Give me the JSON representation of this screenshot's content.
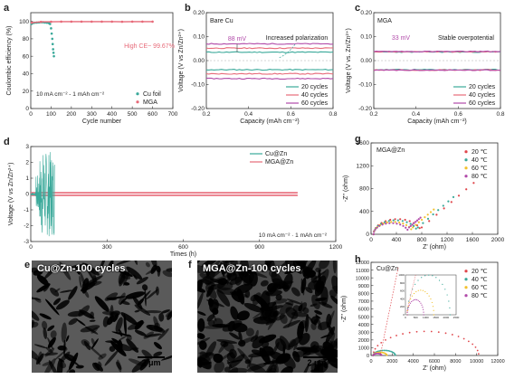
{
  "panel_letters": {
    "a": "a",
    "b": "b",
    "c": "c",
    "d": "d",
    "e": "e",
    "f": "f",
    "g": "g",
    "h": "h"
  },
  "micrographs": {
    "e": {
      "label": "Cu@Zn-100 cycles",
      "scale": "2 μm"
    },
    "f": {
      "label": "MGA@Zn-100 cycles",
      "scale": "2 μm"
    }
  },
  "chart_data": [
    {
      "id": "a",
      "type": "scatter",
      "xlabel": "Cycle number",
      "ylabel": "Coulombic efficiency (%)",
      "xlim": [
        0,
        700
      ],
      "ylim": [
        0,
        110
      ],
      "xticks": [
        0,
        100,
        200,
        300,
        400,
        500,
        600,
        700
      ],
      "yticks": [
        0,
        20,
        40,
        60,
        80,
        100
      ],
      "annotations": [
        "High CE~ 99.67%",
        "10 mA cm⁻² - 1 mAh cm⁻²"
      ],
      "legend": "bottom-right",
      "series": [
        {
          "name": "Cu foil",
          "color": "#3aa99a",
          "x": [
            3,
            10,
            20,
            30,
            40,
            50,
            60,
            70,
            80,
            90,
            95,
            100,
            103,
            106,
            108,
            110,
            112,
            114
          ],
          "y": [
            97,
            98,
            98.5,
            98.6,
            98.8,
            99,
            99,
            98.7,
            98.5,
            98,
            97,
            92,
            86,
            80,
            74,
            68,
            64,
            60
          ]
        },
        {
          "name": "MGA",
          "color": "#e76a79",
          "x": [
            5,
            50,
            100,
            150,
            200,
            250,
            300,
            350,
            400,
            450,
            500,
            550,
            600
          ],
          "y": [
            98.5,
            99.5,
            99.6,
            99.7,
            99.7,
            99.7,
            99.7,
            99.7,
            99.7,
            99.6,
            99.7,
            99.7,
            99.7
          ]
        }
      ]
    },
    {
      "id": "b",
      "type": "line",
      "xlabel": "Capacity (mAh cm⁻²)",
      "ylabel": "Voltage (V vs Zn/Zn²⁺)",
      "xlim": [
        0.2,
        0.8
      ],
      "ylim": [
        -0.2,
        0.2
      ],
      "xticks": [
        0.2,
        0.4,
        0.6,
        0.8
      ],
      "yticks": [
        -0.2,
        -0.1,
        0.0,
        0.1,
        0.2
      ],
      "yticklabels": [
        "-0.20",
        "-0.10",
        "0.00",
        "0.10",
        "0.20"
      ],
      "annotations": [
        "Bare Cu",
        "88 mV",
        "Increased polarization"
      ],
      "legend": "bottom-right",
      "series": [
        {
          "name": "20 cycles",
          "color": "#3aa99a",
          "upper": 0.035,
          "lower": -0.038
        },
        {
          "name": "40 cycles",
          "color": "#e76a79",
          "upper": 0.052,
          "lower": -0.055
        },
        {
          "name": "60 cycles",
          "color": "#b14aa9",
          "upper": 0.07,
          "lower": -0.075
        }
      ]
    },
    {
      "id": "c",
      "type": "line",
      "xlabel": "Capacity (mAh cm⁻²)",
      "ylabel": "Voltage (V vs. Zn/Zn²⁺)",
      "xlim": [
        0.2,
        0.8
      ],
      "ylim": [
        -0.2,
        0.2
      ],
      "xticks": [
        0.2,
        0.4,
        0.6,
        0.8
      ],
      "yticks": [
        -0.2,
        -0.1,
        0.0,
        0.1,
        0.2
      ],
      "yticklabels": [
        "-0.20",
        "-0.10",
        "0.00",
        "0.10",
        "0.20"
      ],
      "annotations": [
        "MGA",
        "33 mV",
        "Stable overpotential"
      ],
      "legend": "bottom-right",
      "series": [
        {
          "name": "20 cycles",
          "color": "#3aa99a",
          "upper": 0.036,
          "lower": -0.038
        },
        {
          "name": "40 cycles",
          "color": "#e76a79",
          "upper": 0.037,
          "lower": -0.039
        },
        {
          "name": "60 cycles",
          "color": "#b14aa9",
          "upper": 0.038,
          "lower": -0.04
        }
      ]
    },
    {
      "id": "d",
      "type": "line",
      "xlabel": "Times (h)",
      "ylabel": "Voltage (V vs Zn/Zn²⁺)",
      "xlim": [
        0,
        1200
      ],
      "ylim": [
        -3,
        3
      ],
      "xticks": [
        0,
        300,
        600,
        900,
        1200
      ],
      "yticks": [
        -3,
        -2,
        -1,
        0,
        1,
        2,
        3
      ],
      "annotations": [
        "10 mA cm⁻² · 1 mAh cm⁻²"
      ],
      "legend": "top-right",
      "series": [
        {
          "name": "Cu@Zn",
          "color": "#3aa99a",
          "tmax": 95
        },
        {
          "name": "MGA@Zn",
          "color": "#e76a79",
          "tmax": 1050
        }
      ]
    },
    {
      "id": "g",
      "type": "scatter",
      "xlabel": "Z' (ohm)",
      "ylabel": "-Z'' (ohm)",
      "xlim": [
        0,
        2000
      ],
      "ylim": [
        0,
        1600
      ],
      "xticks": [
        0,
        400,
        800,
        1200,
        1600,
        2000
      ],
      "yticks": [
        0,
        400,
        800,
        1200,
        1600
      ],
      "annotations": [
        "MGA@Zn"
      ],
      "legend": "top-right",
      "series": [
        {
          "name": "20 ℃",
          "color": "#e0464b",
          "x0": 40,
          "d": 760,
          "tailLen": 820
        },
        {
          "name": "40 ℃",
          "color": "#3aa99a",
          "x0": 40,
          "d": 700,
          "tailLen": 560
        },
        {
          "name": "60 ℃",
          "color": "#f2c12e",
          "x0": 40,
          "d": 620,
          "tailLen": 330
        },
        {
          "name": "80 ℃",
          "color": "#b14aa9",
          "x0": 40,
          "d": 560,
          "tailLen": 180
        }
      ]
    },
    {
      "id": "h",
      "type": "scatter",
      "xlabel": "Z' (ohm)",
      "ylabel": "-Z'' (ohm)",
      "xlim": [
        0,
        12000
      ],
      "ylim": [
        0,
        12000
      ],
      "xticks": [
        0,
        2000,
        4000,
        6000,
        8000,
        10000,
        12000
      ],
      "yticks": [
        0,
        1000,
        2000,
        3000,
        4000,
        5000,
        6000,
        7000,
        8000,
        9000,
        10000,
        11000,
        12000
      ],
      "annotations": [
        "Cu@Zn"
      ],
      "legend": "top-right",
      "series": [
        {
          "name": "20 ℃",
          "color": "#e0464b",
          "x0": 200,
          "d": 10000
        },
        {
          "name": "40 ℃",
          "color": "#3aa99a",
          "x0": 200,
          "d": 2100
        },
        {
          "name": "60 ℃",
          "color": "#f2c12e",
          "x0": 200,
          "d": 1300
        },
        {
          "name": "80 ℃",
          "color": "#b14aa9",
          "x0": 200,
          "d": 800
        }
      ],
      "inset": {
        "xticks": [
          0,
          500,
          1000,
          1500,
          2000,
          2500
        ],
        "yticks": [
          0,
          200,
          400,
          600,
          800,
          1000
        ],
        "xlim": [
          0,
          2500
        ],
        "ylim": [
          0,
          1000
        ]
      }
    }
  ]
}
